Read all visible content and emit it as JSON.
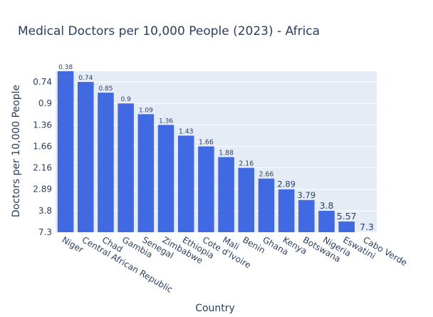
{
  "chart_data": {
    "type": "bar",
    "title": "Medical Doctors per 10,000 People (2023) - Africa",
    "xlabel": "Country",
    "ylabel": "Doctors per 10,000 People",
    "categories": [
      "Niger",
      "Central African Republic",
      "Chad",
      "Gambia",
      "Senegal",
      "Zimbabwe",
      "Ethiopia",
      "Cote d'Ivoire",
      "Mali",
      "Benin",
      "Ghana",
      "Kenya",
      "Botswana",
      "Nigeria",
      "Eswatini",
      "Cabo Verde"
    ],
    "values": [
      0.38,
      0.74,
      0.85,
      0.9,
      1.09,
      1.36,
      1.43,
      1.66,
      1.88,
      2.16,
      2.66,
      2.89,
      3.79,
      3.8,
      5.57,
      7.3
    ],
    "y_tick_labels": [
      "0.74",
      "0.9",
      "1.36",
      "1.66",
      "2.16",
      "2.89",
      "3.8",
      "7.3"
    ],
    "y_axis": "categorical, reversed",
    "bar_color": "#4169e1",
    "plot_background": "#e5ecf6",
    "grid": true,
    "legend": "none"
  }
}
